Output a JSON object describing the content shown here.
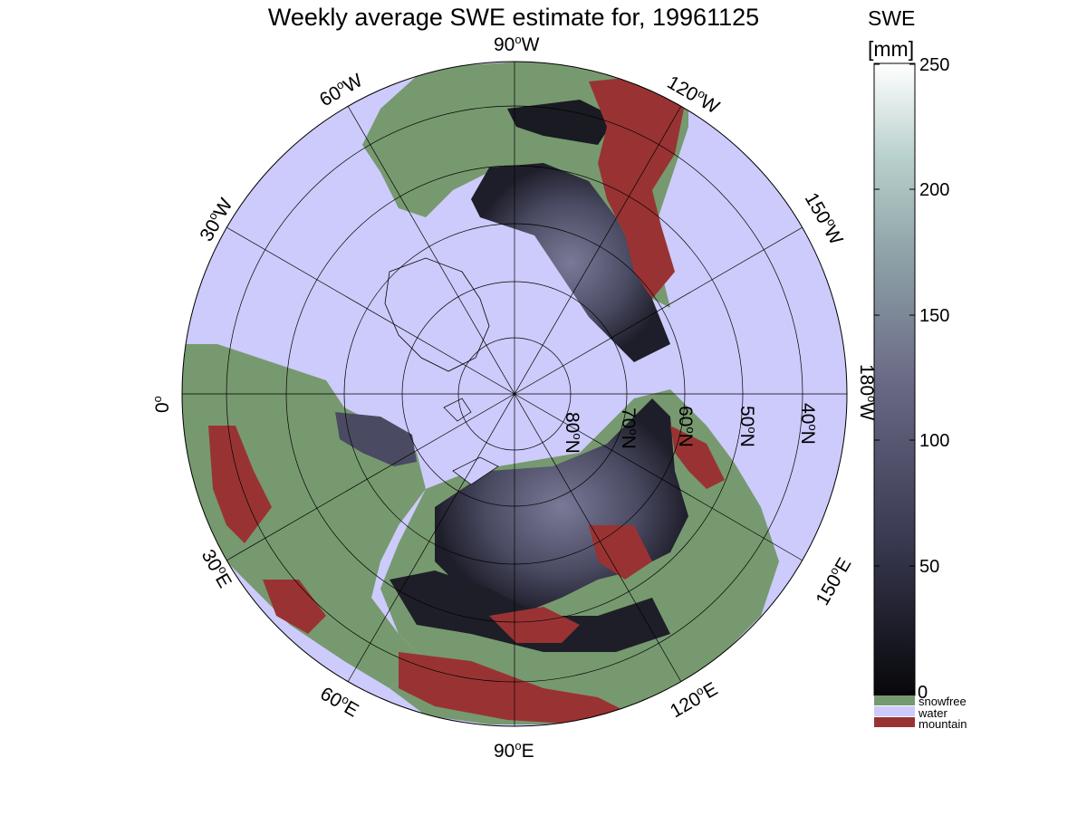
{
  "title": "Weekly average SWE estimate for, 19961125",
  "colorbar": {
    "title_line1": "SWE",
    "title_line2": "[mm]",
    "ticks": [
      "0",
      "50",
      "100",
      "150",
      "200",
      "250"
    ],
    "range": [
      0,
      250
    ]
  },
  "legend": [
    {
      "label": "snowfree",
      "color": "#77996f"
    },
    {
      "label": "water",
      "color": "#cccbfb"
    },
    {
      "label": "mountain",
      "color": "#993333"
    }
  ],
  "meridian_labels": [
    {
      "deg": "90",
      "dir": "W"
    },
    {
      "deg": "120",
      "dir": "W"
    },
    {
      "deg": "150",
      "dir": "W"
    },
    {
      "deg": "180",
      "dir": "W"
    },
    {
      "deg": "150",
      "dir": "E"
    },
    {
      "deg": "120",
      "dir": "E"
    },
    {
      "deg": "90",
      "dir": "E"
    },
    {
      "deg": "60",
      "dir": "E"
    },
    {
      "deg": "30",
      "dir": "E"
    },
    {
      "deg": "0",
      "dir": ""
    },
    {
      "deg": "30",
      "dir": "W"
    },
    {
      "deg": "60",
      "dir": "W"
    }
  ],
  "parallel_labels": [
    {
      "deg": "80",
      "dir": "N"
    },
    {
      "deg": "70",
      "dir": "N"
    },
    {
      "deg": "60",
      "dir": "N"
    },
    {
      "deg": "50",
      "dir": "N"
    },
    {
      "deg": "40",
      "dir": "N"
    }
  ],
  "colors": {
    "water": "#cccbfb",
    "snowfree": "#77996f",
    "mountain": "#993333",
    "swe_low": "#0a0a10",
    "swe_mid": "#5a5a78",
    "swe_high": "#ffffff"
  }
}
